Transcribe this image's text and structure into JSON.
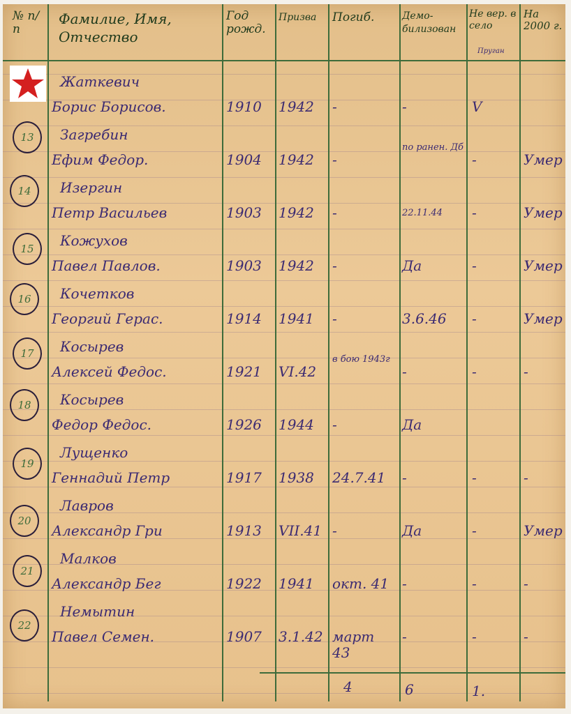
{
  "header": {
    "num": "№ п/п",
    "name": "Фамилие, Имя, Отчество",
    "birth": "Год рожд.",
    "called": "Призва",
    "died": "Погиб.",
    "demob": "Демо-билизован",
    "village": "Не вер. в село",
    "village_note": "Пруган",
    "y2000": "На 2000 г."
  },
  "accent_icon": "red-star-icon",
  "colors": {
    "ink": "#3b2a72",
    "lines": "#3d6b3a",
    "star": "#d42020"
  },
  "rows": [
    {
      "num": "",
      "surname": "Жаткевич",
      "given": "Борис Борисов.",
      "birth": "1910",
      "called": "1942",
      "died": "-",
      "demob": "-",
      "village": "V",
      "y2000": ""
    },
    {
      "num": "13",
      "surname": "Загребин",
      "given": "Ефим Федор.",
      "birth": "1904",
      "called": "1942",
      "died": "-",
      "demob": "по ранен. Дб",
      "village": "-",
      "y2000": "Умер"
    },
    {
      "num": "14",
      "surname": "Изергин",
      "given": "Петр Васильев",
      "birth": "1903",
      "called": "1942",
      "died": "-",
      "demob": "22.11.44",
      "village": "-",
      "y2000": "Умер"
    },
    {
      "num": "15",
      "surname": "Кожухов",
      "given": "Павел Павлов.",
      "birth": "1903",
      "called": "1942",
      "died": "-",
      "demob": "Да",
      "village": "-",
      "y2000": "Умер"
    },
    {
      "num": "16",
      "surname": "Кочетков",
      "given": "Георгий Герас.",
      "birth": "1914",
      "called": "1941",
      "died": "-",
      "demob": "3.6.46",
      "village": "-",
      "y2000": "Умер"
    },
    {
      "num": "17",
      "surname": "Косырев",
      "given": "Алексей Федос.",
      "birth": "1921",
      "called": "VI.42",
      "died": "в бою 1943г",
      "demob": "-",
      "village": "-",
      "y2000": "-"
    },
    {
      "num": "18",
      "surname": "Косырев",
      "given": "Федор Федос.",
      "birth": "1926",
      "called": "1944",
      "died": "-",
      "demob": "Да",
      "village": "",
      "y2000": ""
    },
    {
      "num": "19",
      "surname": "Лущенко",
      "given": "Геннадий Петр",
      "birth": "1917",
      "called": "1938",
      "died": "24.7.41",
      "demob": "-",
      "village": "-",
      "y2000": "-"
    },
    {
      "num": "20",
      "surname": "Лавров",
      "given": "Александр Гри",
      "birth": "1913",
      "called": "VII.41",
      "died": "-",
      "demob": "Да",
      "village": "-",
      "y2000": "Умер"
    },
    {
      "num": "21",
      "surname": "Малков",
      "given": "Александр Бег",
      "birth": "1922",
      "called": "1941",
      "died": "окт. 41",
      "demob": "-",
      "village": "-",
      "y2000": "-"
    },
    {
      "num": "22",
      "surname": "Немытин",
      "given": "Павел Семен.",
      "birth": "1907",
      "called": "3.1.42",
      "died": "март 43",
      "demob": "-",
      "village": "-",
      "y2000": "-"
    }
  ],
  "totals": {
    "died": "4",
    "demob": "6",
    "village": "1."
  }
}
